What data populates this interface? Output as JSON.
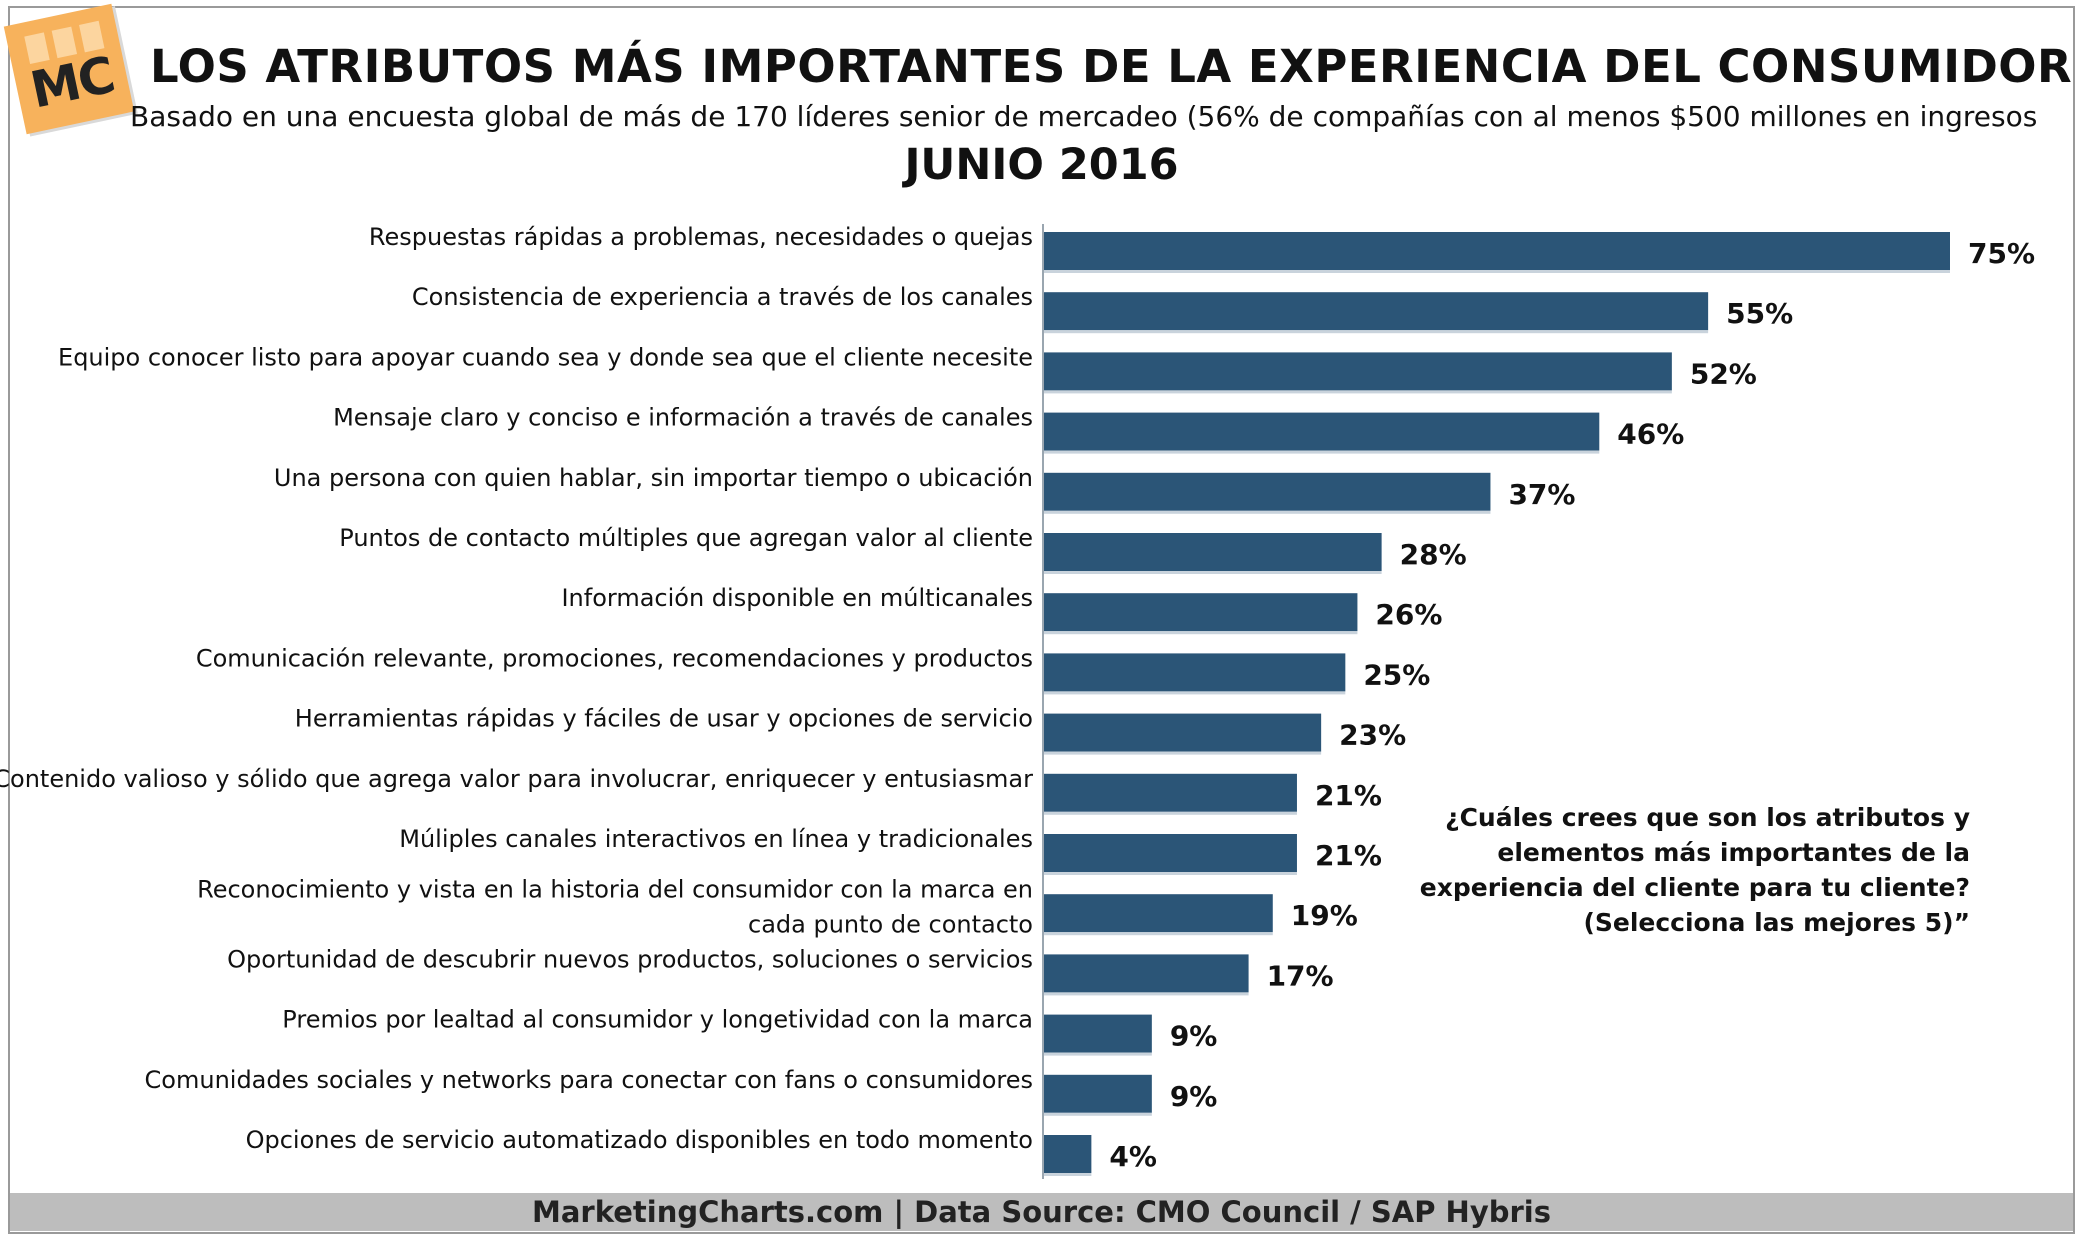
{
  "logo": {
    "text": "MC"
  },
  "title": "LOS ATRIBUTOS MÁS IMPORTANTES DE LA EXPERIENCIA DEL CONSUMIDOR",
  "subtitle": "Basado en una encuesta global de más de 170 líderes senior de mercadeo (56% de compañías con al menos $500 millones en ingresos",
  "date": "JUNIO 2016",
  "note_lines": [
    "¿Cuáles crees que son los atributos y",
    "elementos más importantes de la",
    "experiencia del cliente para tu cliente?",
    "(Selecciona las mejores 5)”"
  ],
  "footer": "MarketingCharts.com | Data Source: CMO Council / SAP Hybris",
  "colors": {
    "bar": "#2b5577",
    "footer_bg": "#bdbdbd"
  },
  "chart_data": {
    "type": "bar",
    "orientation": "horizontal",
    "title": "LOS ATRIBUTOS MÁS IMPORTANTES DE LA EXPERIENCIA DEL CONSUMIDOR",
    "subtitle": "Basado en una encuesta global de más de 170 líderes senior de mercadeo (56% de compañías con al menos $500 millones en ingresos",
    "xlim": [
      0,
      75
    ],
    "grid": false,
    "categories": [
      [
        "Respuestas rápidas a problemas, necesidades o quejas"
      ],
      [
        "Consistencia de experiencia a través de los canales"
      ],
      [
        "Equipo conocer listo para apoyar cuando sea y donde sea que el cliente necesite"
      ],
      [
        "Mensaje claro y conciso e información a través de canales"
      ],
      [
        "Una persona con quien hablar, sin importar tiempo o ubicación"
      ],
      [
        "Puntos de contacto múltiples que agregan valor al cliente"
      ],
      [
        "Información disponible en múlticanales"
      ],
      [
        "Comunicación relevante, promociones, recomendaciones y productos"
      ],
      [
        "Herramientas rápidas y fáciles de usar y opciones de servicio"
      ],
      [
        "Contenido valioso y sólido que agrega valor para involucrar, enriquecer y entusiasmar"
      ],
      [
        "Múliples canales interactivos en línea y tradicionales"
      ],
      [
        "Reconocimiento y vista en la historia del consumidor con la marca en",
        "cada punto de contacto"
      ],
      [
        "Oportunidad de descubrir nuevos productos, soluciones o servicios"
      ],
      [
        "Premios por lealtad al consumidor y longetividad con la marca"
      ],
      [
        "Comunidades sociales y networks para conectar con fans o consumidores"
      ],
      [
        "Opciones de servicio automatizado disponibles en todo momento"
      ]
    ],
    "values": [
      75,
      55,
      52,
      46,
      37,
      28,
      26,
      25,
      23,
      21,
      21,
      19,
      17,
      9,
      9,
      4
    ],
    "value_labels": [
      "75%",
      "55%",
      "52%",
      "46%",
      "37%",
      "28%",
      "26%",
      "25%",
      "23%",
      "21%",
      "21%",
      "19%",
      "17%",
      "9%",
      "9%",
      "4%"
    ]
  }
}
